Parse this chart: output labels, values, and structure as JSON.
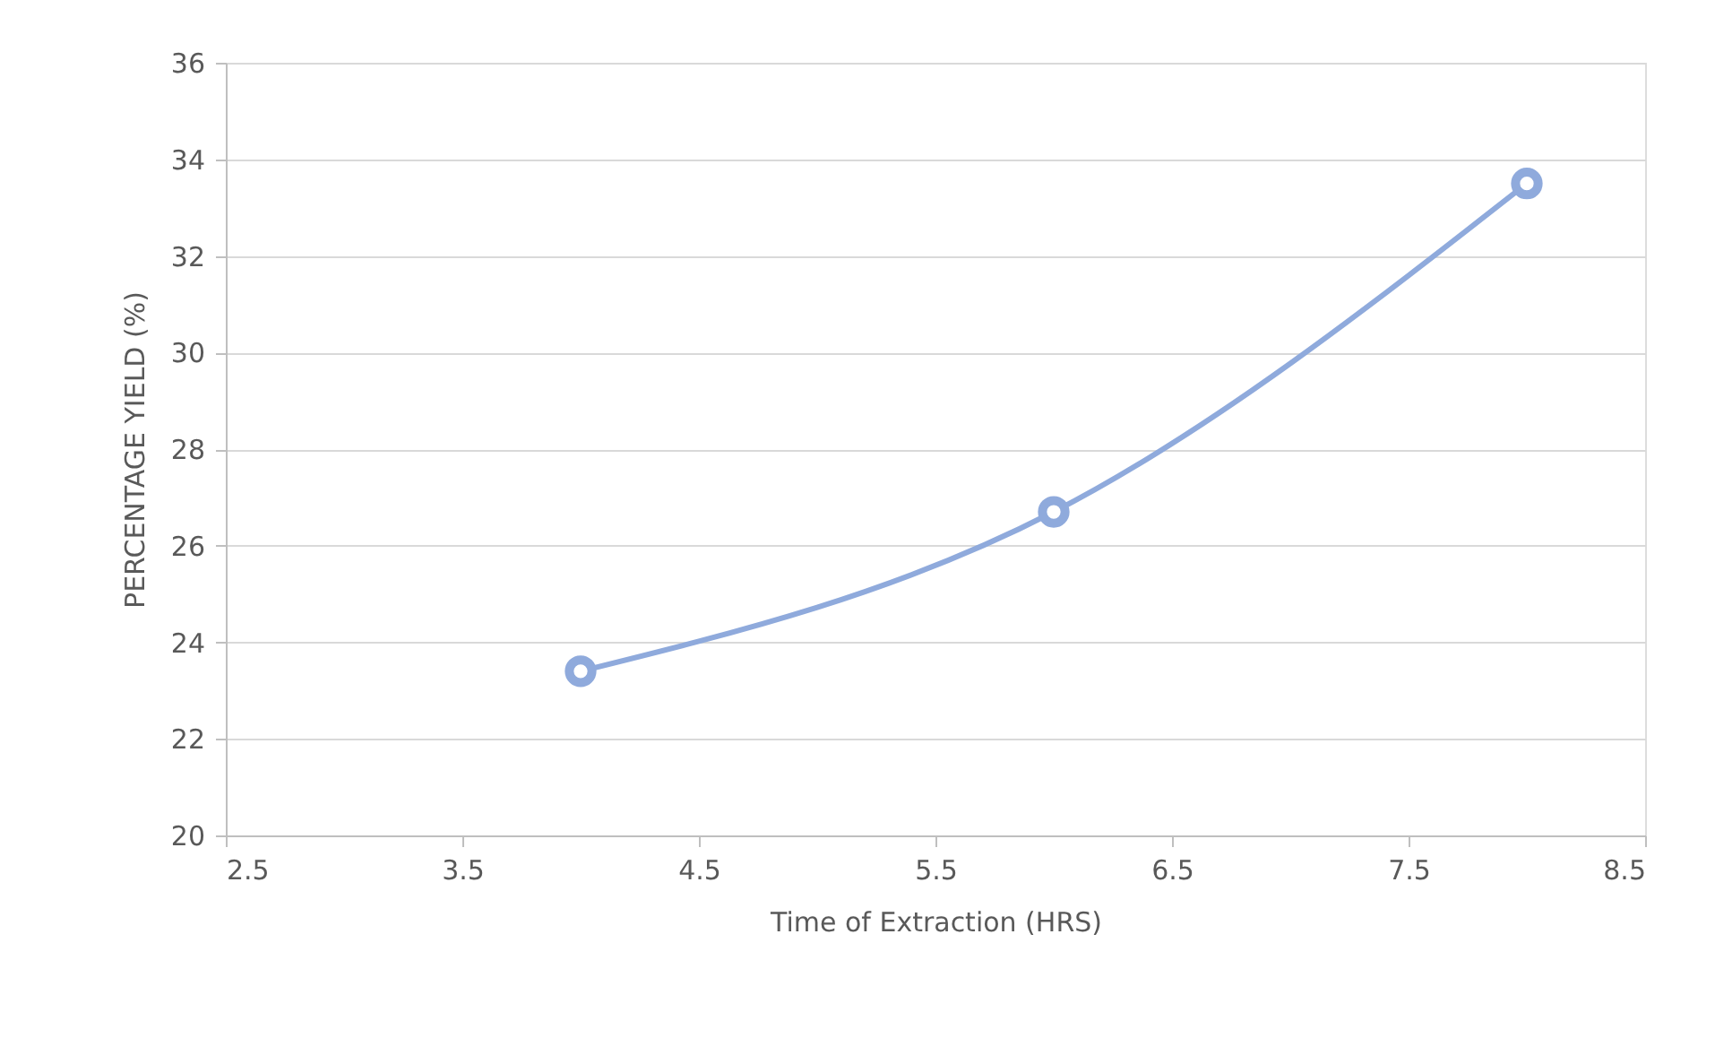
{
  "chart_data": {
    "type": "line",
    "marker": "circle",
    "xlabel": "Time of Extraction (HRS)",
    "ylabel": "PERCENTAGE YIELD (%)",
    "x": [
      4,
      6,
      8
    ],
    "series": [
      {
        "color": "#8faadc",
        "values": [
          23.4,
          26.7,
          33.5
        ]
      }
    ],
    "xlim": [
      2.5,
      8.5
    ],
    "xticks": [
      2.5,
      3.5,
      4.5,
      5.5,
      6.5,
      7.5,
      8.5
    ],
    "ylim": [
      20,
      36
    ],
    "yticks": [
      20,
      22,
      24,
      26,
      28,
      30,
      32,
      34,
      36
    ],
    "grid": "y",
    "legend": false
  }
}
